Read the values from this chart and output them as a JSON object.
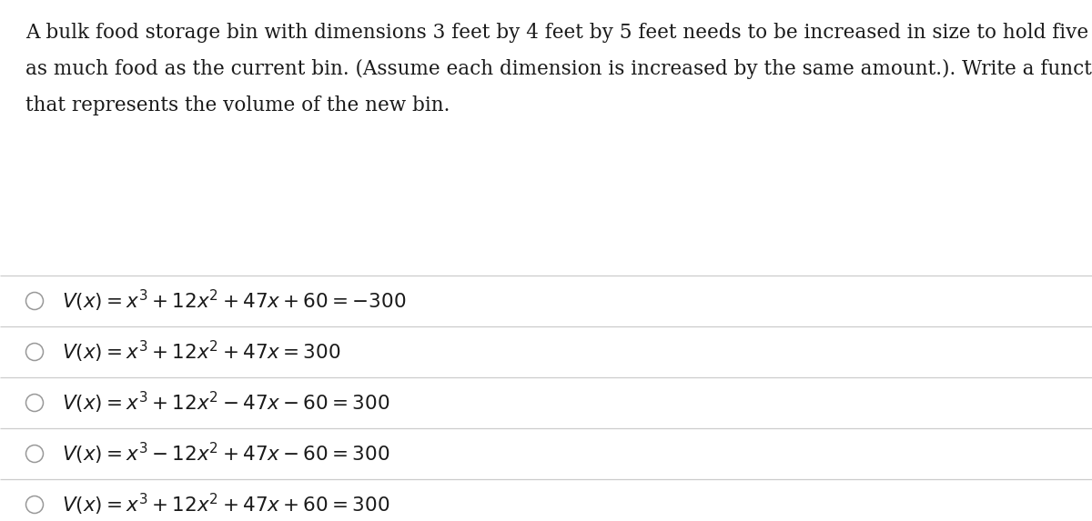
{
  "background_color": "#ffffff",
  "question_lines": [
    "A bulk food storage bin with dimensions 3 feet by 4 feet by 5 feet needs to be increased in size to hold five times",
    "as much food as the current bin. (Assume each dimension is increased by the same amount.). Write a function",
    "that represents the volume of the new bin."
  ],
  "options": [
    "$V(x) = x^3 + 12x^2 + 47x + 60 = {-300}$",
    "$V(x) = x^3 + 12x^2 + 47x = 300$",
    "$V(x) = x^3 + 12x^2 - 47x - 60 = 300$",
    "$V(x) = x^3 - 12x^2 + 47x - 60 = 300$",
    "$V(x) = x^3 + 12x^2 + 47x + 60 = 300$"
  ],
  "text_color": "#1a1a1a",
  "line_color": "#cccccc",
  "circle_color": "#999999",
  "question_fontsize": 15.5,
  "option_fontsize": 15.5,
  "fig_width": 12.0,
  "fig_height": 5.73,
  "dpi": 100
}
